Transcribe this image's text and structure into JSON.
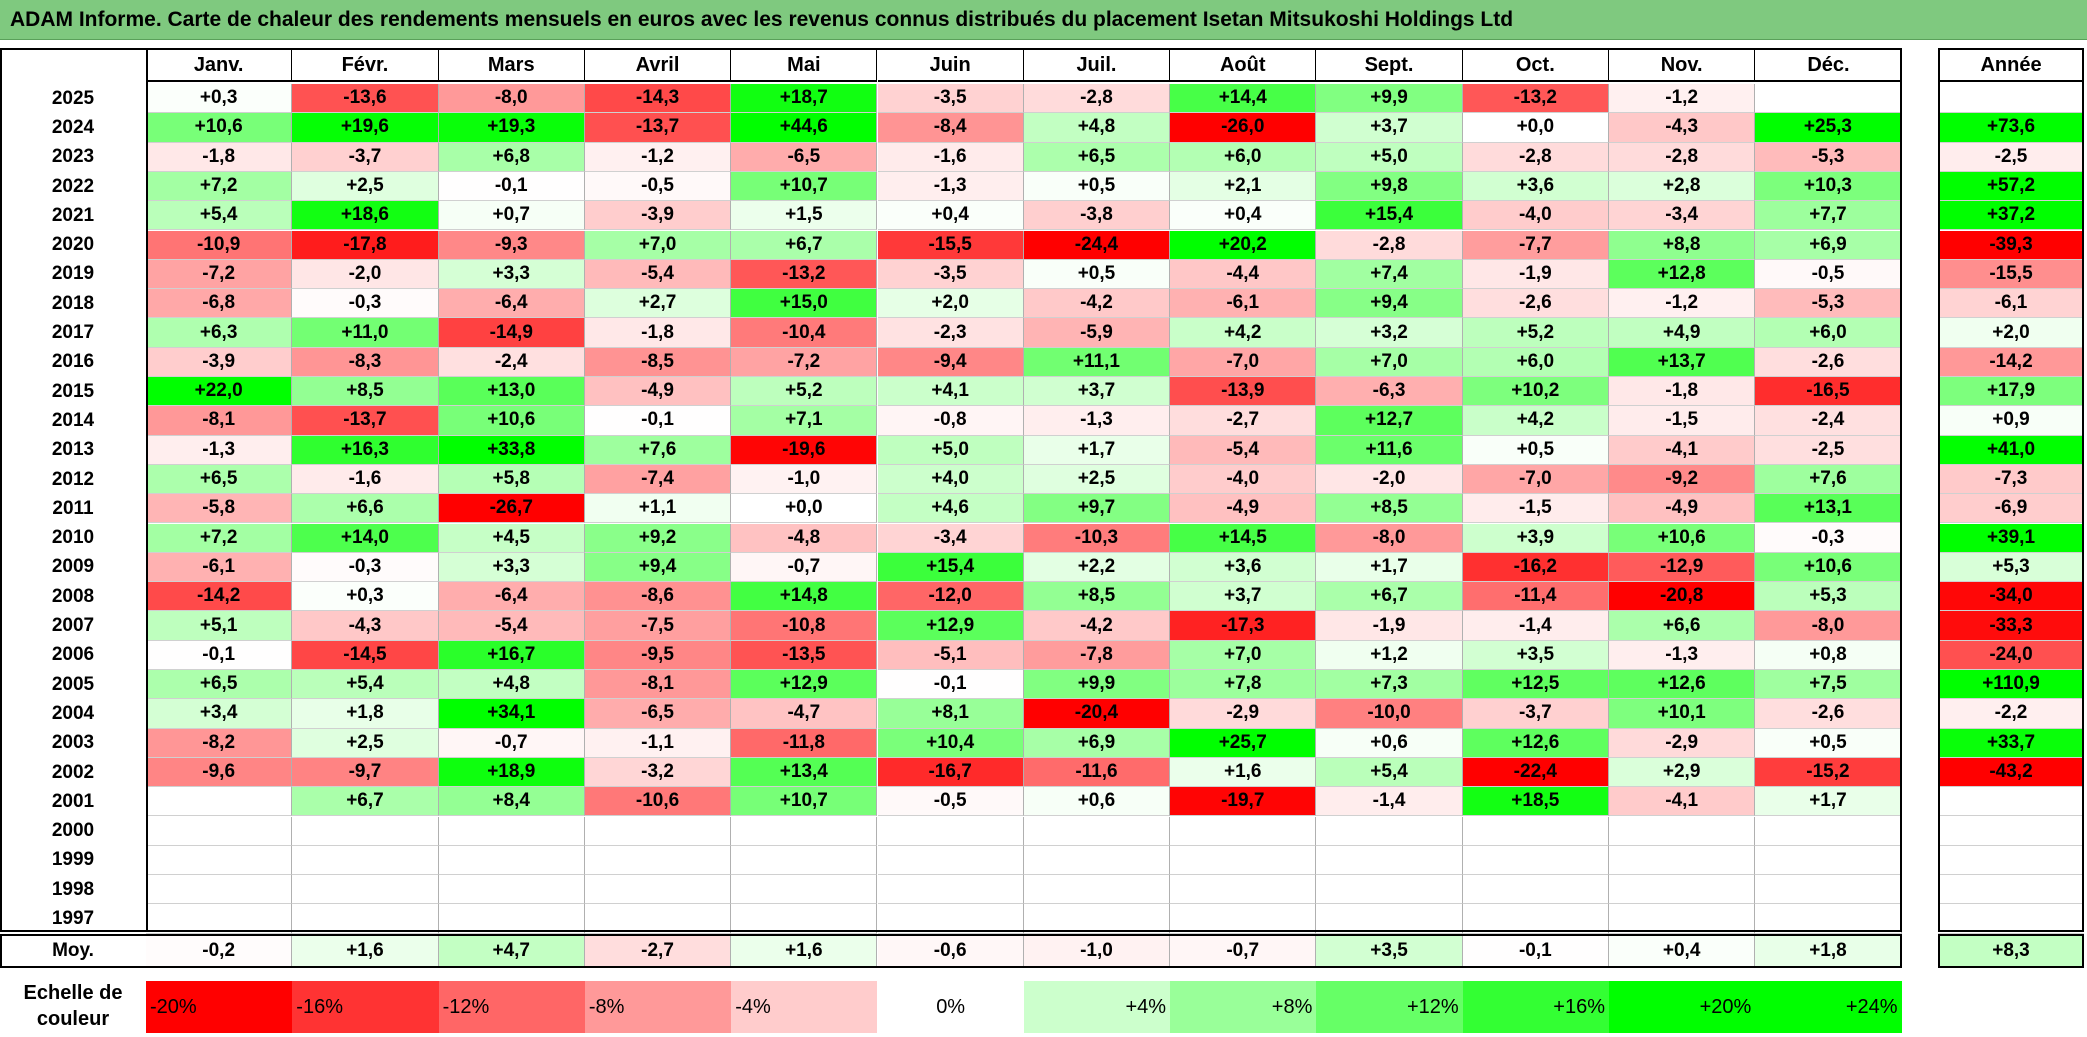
{
  "title": "ADAM Informe. Carte de chaleur des rendements mensuels en euros avec les revenus connus distribués du placement Isetan Mitsukoshi Holdings Ltd",
  "chart_data": {
    "type": "heatmap",
    "columns": [
      "Janv.",
      "Févr.",
      "Mars",
      "Avril",
      "Mai",
      "Juin",
      "Juil.",
      "Août",
      "Sept.",
      "Oct.",
      "Nov.",
      "Déc."
    ],
    "annual_label": "Année",
    "rows": [
      {
        "year": "2025",
        "values": [
          "+0,3",
          "-13,6",
          "-8,0",
          "-14,3",
          "+18,7",
          "-3,5",
          "-2,8",
          "+14,4",
          "+9,9",
          "-13,2",
          "-1,2",
          ""
        ],
        "annual": ""
      },
      {
        "year": "2024",
        "values": [
          "+10,6",
          "+19,6",
          "+19,3",
          "-13,7",
          "+44,6",
          "-8,4",
          "+4,8",
          "-26,0",
          "+3,7",
          "+0,0",
          "-4,3",
          "+25,3"
        ],
        "annual": "+73,6"
      },
      {
        "year": "2023",
        "values": [
          "-1,8",
          "-3,7",
          "+6,8",
          "-1,2",
          "-6,5",
          "-1,6",
          "+6,5",
          "+6,0",
          "+5,0",
          "-2,8",
          "-2,8",
          "-5,3"
        ],
        "annual": "-2,5"
      },
      {
        "year": "2022",
        "values": [
          "+7,2",
          "+2,5",
          "-0,1",
          "-0,5",
          "+10,7",
          "-1,3",
          "+0,5",
          "+2,1",
          "+9,8",
          "+3,6",
          "+2,8",
          "+10,3"
        ],
        "annual": "+57,2"
      },
      {
        "year": "2021",
        "values": [
          "+5,4",
          "+18,6",
          "+0,7",
          "-3,9",
          "+1,5",
          "+0,4",
          "-3,8",
          "+0,4",
          "+15,4",
          "-4,0",
          "-3,4",
          "+7,7"
        ],
        "annual": "+37,2"
      },
      {
        "year": "2020",
        "values": [
          "-10,9",
          "-17,8",
          "-9,3",
          "+7,0",
          "+6,7",
          "-15,5",
          "-24,4",
          "+20,2",
          "-2,8",
          "-7,7",
          "+8,8",
          "+6,9"
        ],
        "annual": "-39,3"
      },
      {
        "year": "2019",
        "values": [
          "-7,2",
          "-2,0",
          "+3,3",
          "-5,4",
          "-13,2",
          "-3,5",
          "+0,5",
          "-4,4",
          "+7,4",
          "-1,9",
          "+12,8",
          "-0,5"
        ],
        "annual": "-15,5"
      },
      {
        "year": "2018",
        "values": [
          "-6,8",
          "-0,3",
          "-6,4",
          "+2,7",
          "+15,0",
          "+2,0",
          "-4,2",
          "-6,1",
          "+9,4",
          "-2,6",
          "-1,2",
          "-5,3"
        ],
        "annual": "-6,1"
      },
      {
        "year": "2017",
        "values": [
          "+6,3",
          "+11,0",
          "-14,9",
          "-1,8",
          "-10,4",
          "-2,3",
          "-5,9",
          "+4,2",
          "+3,2",
          "+5,2",
          "+4,9",
          "+6,0"
        ],
        "annual": "+2,0"
      },
      {
        "year": "2016",
        "values": [
          "-3,9",
          "-8,3",
          "-2,4",
          "-8,5",
          "-7,2",
          "-9,4",
          "+11,1",
          "-7,0",
          "+7,0",
          "+6,0",
          "+13,7",
          "-2,6"
        ],
        "annual": "-14,2"
      },
      {
        "year": "2015",
        "values": [
          "+22,0",
          "+8,5",
          "+13,0",
          "-4,9",
          "+5,2",
          "+4,1",
          "+3,7",
          "-13,9",
          "-6,3",
          "+10,2",
          "-1,8",
          "-16,5"
        ],
        "annual": "+17,9"
      },
      {
        "year": "2014",
        "values": [
          "-8,1",
          "-13,7",
          "+10,6",
          "-0,1",
          "+7,1",
          "-0,8",
          "-1,3",
          "-2,7",
          "+12,7",
          "+4,2",
          "-1,5",
          "-2,4"
        ],
        "annual": "+0,9"
      },
      {
        "year": "2013",
        "values": [
          "-1,3",
          "+16,3",
          "+33,8",
          "+7,6",
          "-19,6",
          "+5,0",
          "+1,7",
          "-5,4",
          "+11,6",
          "+0,5",
          "-4,1",
          "-2,5"
        ],
        "annual": "+41,0"
      },
      {
        "year": "2012",
        "values": [
          "+6,5",
          "-1,6",
          "+5,8",
          "-7,4",
          "-1,0",
          "+4,0",
          "+2,5",
          "-4,0",
          "-2,0",
          "-7,0",
          "-9,2",
          "+7,6"
        ],
        "annual": "-7,3"
      },
      {
        "year": "2011",
        "values": [
          "-5,8",
          "+6,6",
          "-26,7",
          "+1,1",
          "+0,0",
          "+4,6",
          "+9,7",
          "-4,9",
          "+8,5",
          "-1,5",
          "-4,9",
          "+13,1"
        ],
        "annual": "-6,9"
      },
      {
        "year": "2010",
        "values": [
          "+7,2",
          "+14,0",
          "+4,5",
          "+9,2",
          "-4,8",
          "-3,4",
          "-10,3",
          "+14,5",
          "-8,0",
          "+3,9",
          "+10,6",
          "-0,3"
        ],
        "annual": "+39,1"
      },
      {
        "year": "2009",
        "values": [
          "-6,1",
          "-0,3",
          "+3,3",
          "+9,4",
          "-0,7",
          "+15,4",
          "+2,2",
          "+3,6",
          "+1,7",
          "-16,2",
          "-12,9",
          "+10,6"
        ],
        "annual": "+5,3"
      },
      {
        "year": "2008",
        "values": [
          "-14,2",
          "+0,3",
          "-6,4",
          "-8,6",
          "+14,8",
          "-12,0",
          "+8,5",
          "+3,7",
          "+6,7",
          "-11,4",
          "-20,8",
          "+5,3"
        ],
        "annual": "-34,0"
      },
      {
        "year": "2007",
        "values": [
          "+5,1",
          "-4,3",
          "-5,4",
          "-7,5",
          "-10,8",
          "+12,9",
          "-4,2",
          "-17,3",
          "-1,9",
          "-1,4",
          "+6,6",
          "-8,0"
        ],
        "annual": "-33,3"
      },
      {
        "year": "2006",
        "values": [
          "-0,1",
          "-14,5",
          "+16,7",
          "-9,5",
          "-13,5",
          "-5,1",
          "-7,8",
          "+7,0",
          "+1,2",
          "+3,5",
          "-1,3",
          "+0,8"
        ],
        "annual": "-24,0"
      },
      {
        "year": "2005",
        "values": [
          "+6,5",
          "+5,4",
          "+4,8",
          "-8,1",
          "+12,9",
          "-0,1",
          "+9,9",
          "+7,8",
          "+7,3",
          "+12,5",
          "+12,6",
          "+7,5"
        ],
        "annual": "+110,9"
      },
      {
        "year": "2004",
        "values": [
          "+3,4",
          "+1,8",
          "+34,1",
          "-6,5",
          "-4,7",
          "+8,1",
          "-20,4",
          "-2,9",
          "-10,0",
          "-3,7",
          "+10,1",
          "-2,6"
        ],
        "annual": "-2,2"
      },
      {
        "year": "2003",
        "values": [
          "-8,2",
          "+2,5",
          "-0,7",
          "-1,1",
          "-11,8",
          "+10,4",
          "+6,9",
          "+25,7",
          "+0,6",
          "+12,6",
          "-2,9",
          "+0,5"
        ],
        "annual": "+33,7"
      },
      {
        "year": "2002",
        "values": [
          "-9,6",
          "-9,7",
          "+18,9",
          "-3,2",
          "+13,4",
          "-16,7",
          "-11,6",
          "+1,6",
          "+5,4",
          "-22,4",
          "+2,9",
          "-15,2"
        ],
        "annual": "-43,2"
      },
      {
        "year": "2001",
        "values": [
          "",
          "+6,7",
          "+8,4",
          "-10,6",
          "+10,7",
          "-0,5",
          "+0,6",
          "-19,7",
          "-1,4",
          "+18,5",
          "-4,1",
          "+1,7"
        ],
        "annual": ""
      },
      {
        "year": "2000",
        "values": [
          "",
          "",
          "",
          "",
          "",
          "",
          "",
          "",
          "",
          "",
          "",
          ""
        ],
        "annual": ""
      },
      {
        "year": "1999",
        "values": [
          "",
          "",
          "",
          "",
          "",
          "",
          "",
          "",
          "",
          "",
          "",
          ""
        ],
        "annual": ""
      },
      {
        "year": "1998",
        "values": [
          "",
          "",
          "",
          "",
          "",
          "",
          "",
          "",
          "",
          "",
          "",
          ""
        ],
        "annual": ""
      },
      {
        "year": "1997",
        "values": [
          "",
          "",
          "",
          "",
          "",
          "",
          "",
          "",
          "",
          "",
          "",
          ""
        ],
        "annual": ""
      }
    ],
    "average": {
      "label": "Moy.",
      "values": [
        "-0,2",
        "+1,6",
        "+4,7",
        "-2,7",
        "+1,6",
        "-0,6",
        "-1,0",
        "-0,7",
        "+3,5",
        "-0,1",
        "+0,4",
        "+1,8"
      ],
      "annual": "+8,3"
    },
    "color_scale": {
      "title_line1": "Echelle de",
      "title_line2": "couleur",
      "stops": [
        {
          "label": "-20%",
          "value": -20
        },
        {
          "label": "-16%",
          "value": -16
        },
        {
          "label": "-12%",
          "value": -12
        },
        {
          "label": "-8%",
          "value": -8
        },
        {
          "label": "-4%",
          "value": -4
        },
        {
          "label": "0%",
          "value": 0
        },
        {
          "label": "+4%",
          "value": 4
        },
        {
          "label": "+8%",
          "value": 8
        },
        {
          "label": "+12%",
          "value": 12
        },
        {
          "label": "+16%",
          "value": 16
        },
        {
          "label": "+20%",
          "value": 20
        },
        {
          "label": "+24%",
          "value": 24
        }
      ],
      "negative_color": "#ff0000",
      "positive_color": "#00ff00",
      "neutral_color": "#ffffff"
    }
  }
}
